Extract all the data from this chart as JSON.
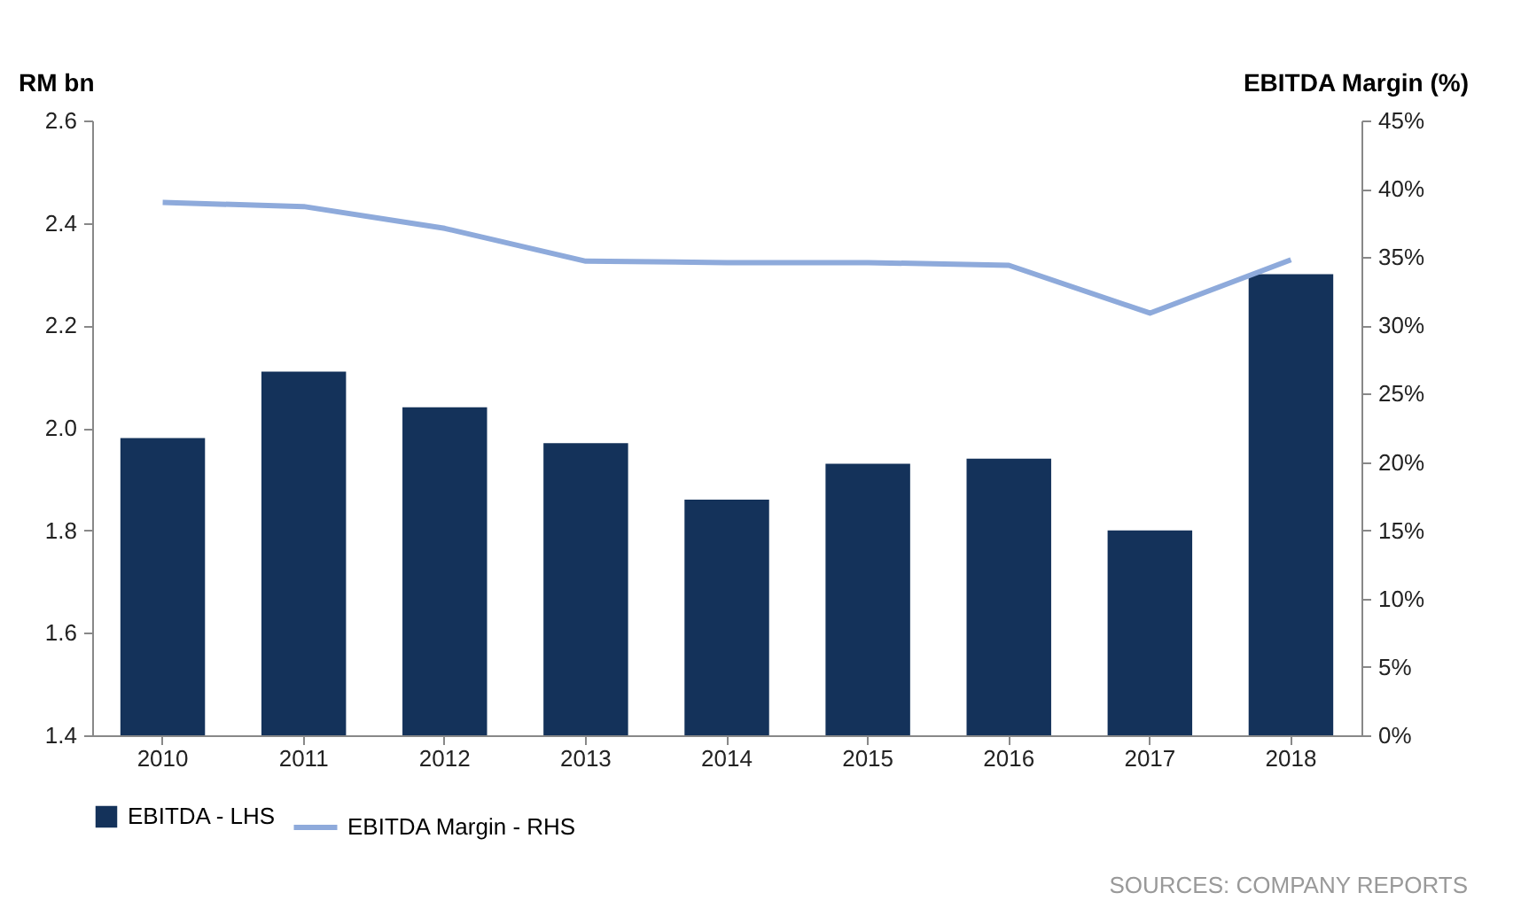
{
  "chart_data": {
    "type": "bar",
    "categories": [
      "2010",
      "2011",
      "2012",
      "2013",
      "2014",
      "2015",
      "2016",
      "2017",
      "2018"
    ],
    "ylabel": "RM bn",
    "y2label": "EBITDA Margin (%)",
    "series": [
      {
        "name": "EBITDA - LHS",
        "color": "#14325a",
        "values": [
          1.98,
          2.11,
          2.04,
          1.97,
          1.86,
          1.93,
          1.94,
          1.8,
          2.3
        ]
      },
      {
        "name": "EBITDA Margin - RHS",
        "type": "line",
        "axis": "y2",
        "color": "#8eaadb",
        "values": [
          39.0,
          38.7,
          37.1,
          34.7,
          34.6,
          34.6,
          34.4,
          30.9,
          34.8
        ]
      }
    ],
    "ylim": [
      1.4,
      2.6
    ],
    "yticks": [
      {
        "value": 1.4,
        "label": "1.4"
      },
      {
        "value": 1.6,
        "label": "1.6"
      },
      {
        "value": 1.8,
        "label": "1.8"
      },
      {
        "value": 2.0,
        "label": "2.0"
      },
      {
        "value": 2.2,
        "label": "2.2"
      },
      {
        "value": 2.4,
        "label": "2.4"
      },
      {
        "value": 2.6,
        "label": "2.6"
      }
    ],
    "y2lim": [
      0,
      45
    ],
    "y2ticks": [
      {
        "value": 0,
        "label": "0%"
      },
      {
        "value": 5,
        "label": "5%"
      },
      {
        "value": 10,
        "label": "10%"
      },
      {
        "value": 15,
        "label": "15%"
      },
      {
        "value": 20,
        "label": "20%"
      },
      {
        "value": 25,
        "label": "25%"
      },
      {
        "value": 30,
        "label": "30%"
      },
      {
        "value": 35,
        "label": "35%"
      },
      {
        "value": 40,
        "label": "40%"
      },
      {
        "value": 45,
        "label": "45%"
      }
    ],
    "grid": false,
    "legend": "bottom",
    "marker": "none",
    "line_style": "solid",
    "annotations": [
      "SOURCES: COMPANY REPORTS"
    ]
  }
}
